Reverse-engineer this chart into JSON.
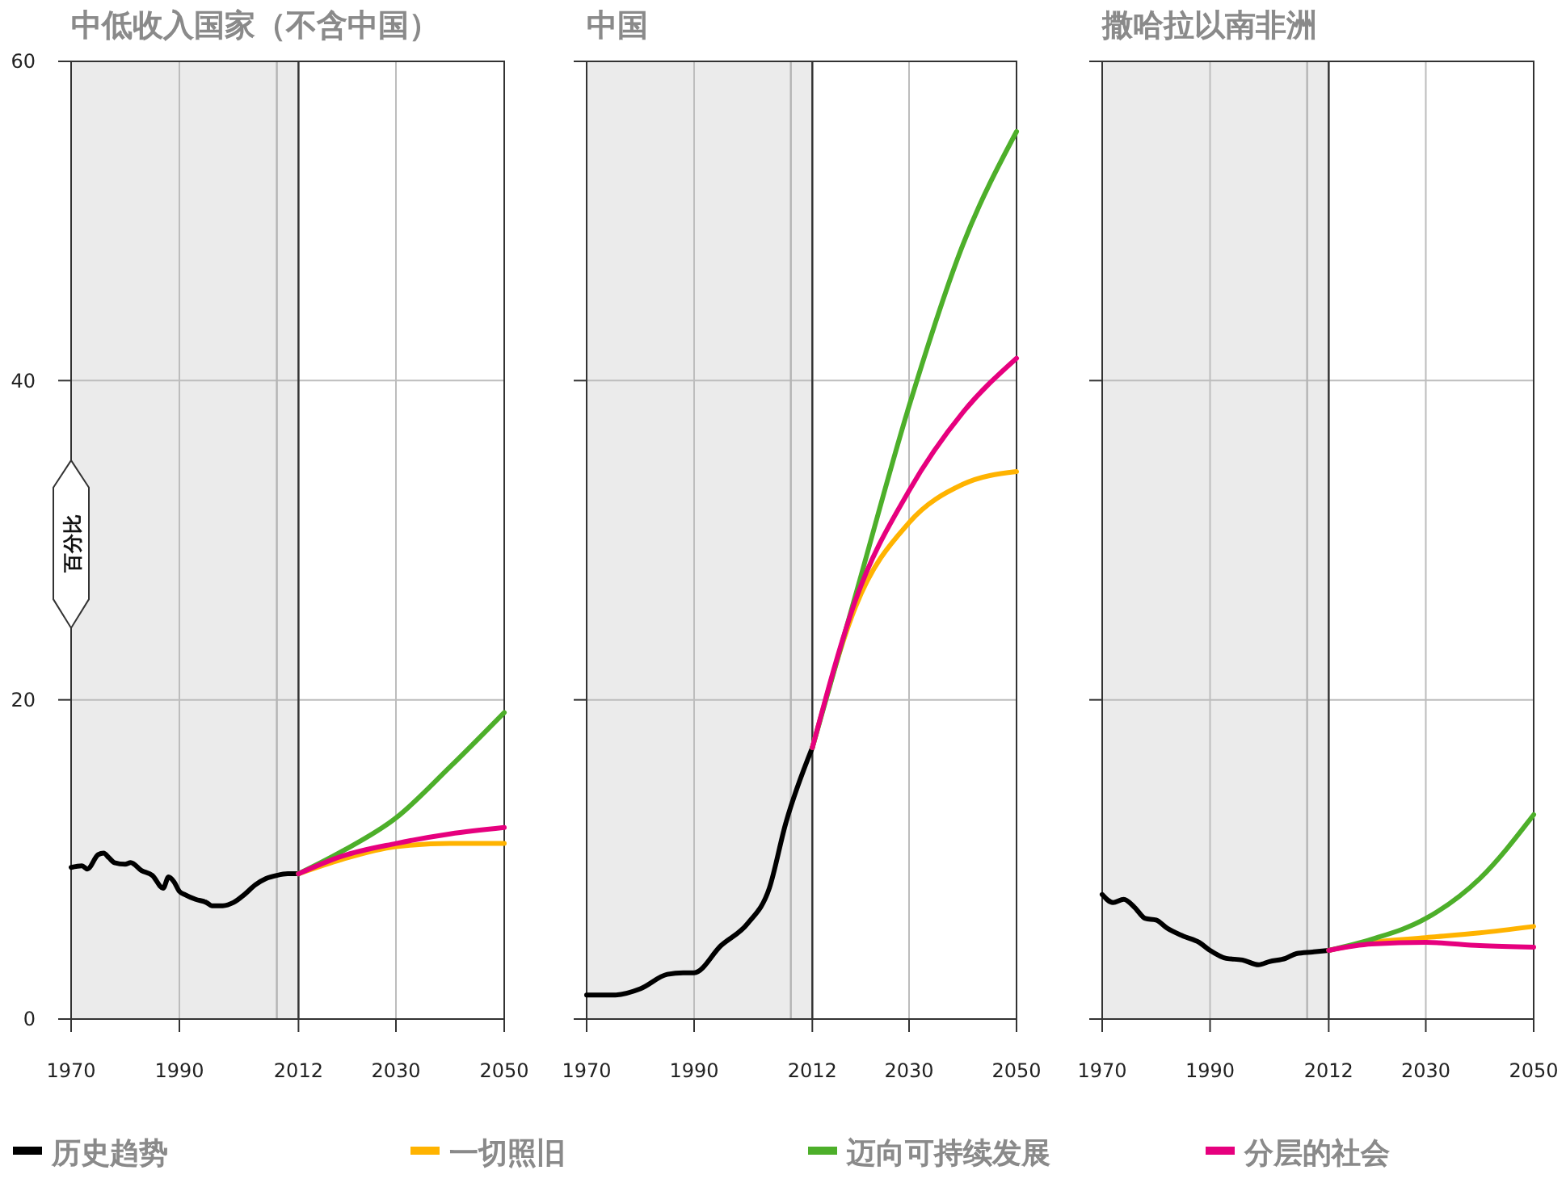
{
  "chart_data": [
    {
      "type": "line",
      "title": "中低收入国家（不含中国）",
      "ylabel": "百分比",
      "xlim": [
        1970,
        2050
      ],
      "xticks": [
        1970,
        1990,
        2012,
        2030,
        2050
      ],
      "ylim": [
        0,
        60
      ],
      "yticks": [
        0,
        20,
        40,
        60
      ],
      "grid": true,
      "legend": "bottom",
      "bands": [
        {
          "axis": "x",
          "from": 1970,
          "to": 2012,
          "color": "#ebebeb"
        }
      ],
      "ref_lines": [
        {
          "axis": "x",
          "value": 2008,
          "color": "#b4b4b4"
        },
        {
          "axis": "x",
          "value": 2012,
          "color": "#333333"
        }
      ],
      "series": [
        {
          "name": "历史趋势",
          "color": "#000000",
          "x": [
            1970,
            1972,
            1973,
            1975,
            1976,
            1977,
            1978,
            1980,
            1981,
            1983,
            1985,
            1987,
            1988,
            1989,
            1990,
            1991,
            1993,
            1995,
            1996,
            1998,
            2000,
            2002,
            2004,
            2006,
            2008,
            2010,
            2012
          ],
          "values": [
            9.5,
            9.6,
            9.4,
            10.3,
            10.4,
            10.1,
            9.8,
            9.7,
            9.8,
            9.3,
            9.0,
            8.2,
            8.9,
            8.6,
            8.0,
            7.8,
            7.5,
            7.3,
            7.1,
            7.1,
            7.3,
            7.8,
            8.4,
            8.8,
            9.0,
            9.1,
            9.1
          ]
        },
        {
          "name": "一切照旧",
          "color": "#ffb300",
          "x": [
            2012,
            2020,
            2030,
            2040,
            2050
          ],
          "values": [
            9.1,
            10.0,
            10.8,
            11.0,
            11.0
          ]
        },
        {
          "name": "迈向可持续发展",
          "color": "#4daf2a",
          "x": [
            2012,
            2020,
            2030,
            2040,
            2050
          ],
          "values": [
            9.1,
            10.5,
            12.6,
            15.8,
            19.2
          ]
        },
        {
          "name": "分层的社会",
          "color": "#e6007e",
          "x": [
            2012,
            2020,
            2030,
            2040,
            2050
          ],
          "values": [
            9.1,
            10.2,
            11.0,
            11.6,
            12.0
          ]
        }
      ]
    },
    {
      "type": "line",
      "title": "中国",
      "xlim": [
        1970,
        2050
      ],
      "xticks": [
        1970,
        1990,
        2012,
        2030,
        2050
      ],
      "ylim": [
        0,
        60
      ],
      "yticks": [
        0,
        20,
        40,
        60
      ],
      "grid": true,
      "tick_labels": "x",
      "bands": [
        {
          "axis": "x",
          "from": 1970,
          "to": 2012,
          "color": "#ebebeb"
        }
      ],
      "ref_lines": [
        {
          "axis": "x",
          "value": 2008,
          "color": "#b4b4b4"
        },
        {
          "axis": "x",
          "value": 2012,
          "color": "#333333"
        }
      ],
      "series": [
        {
          "color": "#000000",
          "x": [
            1970,
            1975,
            1980,
            1985,
            1988,
            1990,
            1995,
            2000,
            2004,
            2007,
            2012
          ],
          "values": [
            1.5,
            1.5,
            1.9,
            2.8,
            2.9,
            2.9,
            4.6,
            6.0,
            8.2,
            12.2,
            17.0
          ]
        },
        {
          "color": "#ffb300",
          "x": [
            2012,
            2020,
            2030,
            2040,
            2050
          ],
          "values": [
            17.0,
            25.8,
            31.1,
            33.5,
            34.3
          ]
        },
        {
          "color": "#4daf2a",
          "x": [
            2012,
            2020,
            2030,
            2040,
            2050
          ],
          "values": [
            17.0,
            26.5,
            38.4,
            48.5,
            55.6
          ]
        },
        {
          "color": "#e6007e",
          "x": [
            2012,
            2020,
            2030,
            2040,
            2050
          ],
          "values": [
            17.0,
            26.2,
            33.1,
            38.0,
            41.4
          ]
        }
      ]
    },
    {
      "type": "line",
      "title": "撒哈拉以南非洲",
      "xlim": [
        1970,
        2050
      ],
      "xticks": [
        1970,
        1990,
        2012,
        2030,
        2050
      ],
      "ylim": [
        0,
        60
      ],
      "yticks": [
        0,
        20,
        40,
        60
      ],
      "grid": true,
      "tick_labels": "x",
      "bands": [
        {
          "axis": "x",
          "from": 1970,
          "to": 2012,
          "color": "#ebebeb"
        }
      ],
      "ref_lines": [
        {
          "axis": "x",
          "value": 2008,
          "color": "#b4b4b4"
        },
        {
          "axis": "x",
          "value": 2012,
          "color": "#333333"
        }
      ],
      "series": [
        {
          "color": "#000000",
          "x": [
            1970,
            1972,
            1974,
            1976,
            1978,
            1980,
            1982,
            1985,
            1988,
            1990,
            1993,
            1996,
            1999,
            2001,
            2004,
            2006,
            2009,
            2012
          ],
          "values": [
            7.8,
            7.3,
            7.5,
            7.0,
            6.3,
            6.2,
            5.7,
            5.2,
            4.8,
            4.3,
            3.8,
            3.7,
            3.4,
            3.6,
            3.8,
            4.1,
            4.2,
            4.3
          ]
        },
        {
          "color": "#ffb300",
          "x": [
            2012,
            2020,
            2030,
            2040,
            2050
          ],
          "values": [
            4.3,
            4.8,
            5.1,
            5.4,
            5.8
          ]
        },
        {
          "color": "#4daf2a",
          "x": [
            2012,
            2020,
            2030,
            2040,
            2050
          ],
          "values": [
            4.3,
            5.0,
            6.3,
            8.8,
            12.8
          ]
        },
        {
          "color": "#e6007e",
          "x": [
            2012,
            2020,
            2030,
            2040,
            2050
          ],
          "values": [
            4.3,
            4.7,
            4.8,
            4.6,
            4.5
          ]
        }
      ]
    }
  ]
}
